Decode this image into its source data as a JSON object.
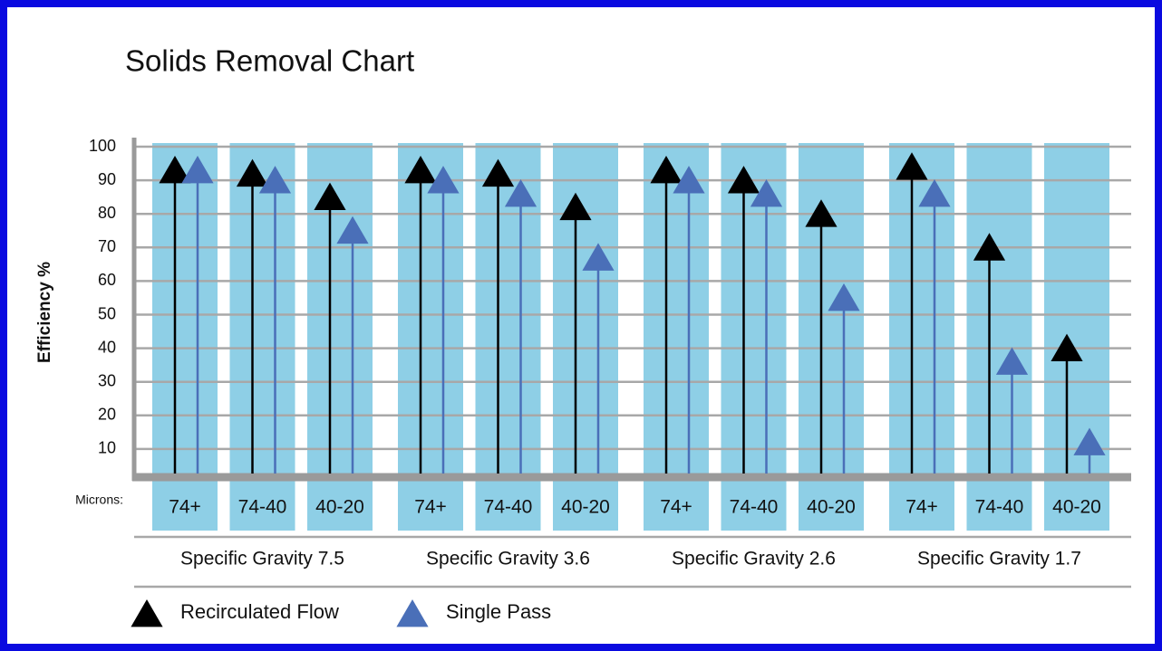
{
  "chart_data": {
    "type": "lollipop",
    "title": "Solids Removal Chart",
    "y_label": "Efficiency %",
    "x_label": "Microns:",
    "groups": [
      "Specific Gravity 7.5",
      "Specific Gravity 3.6",
      "Specific Gravity 2.6",
      "Specific Gravity 1.7"
    ],
    "categories": [
      "74+",
      "74-40",
      "40-20",
      "74+",
      "74-40",
      "40-20",
      "74+",
      "74-40",
      "40-20",
      "74+",
      "74-40",
      "40-20"
    ],
    "series": [
      {
        "name": "Recirculated Flow",
        "color": "#000000",
        "values": [
          93,
          92,
          85,
          93,
          92,
          82,
          93,
          90,
          80,
          94,
          70,
          40
        ]
      },
      {
        "name": "Single Pass",
        "color": "#4a6fb8",
        "values": [
          93,
          90,
          75,
          90,
          86,
          67,
          90,
          86,
          55,
          86,
          36,
          12
        ]
      }
    ],
    "ylim": [
      0,
      100
    ],
    "yticks": [
      10,
      20,
      30,
      40,
      50,
      60,
      70,
      80,
      90,
      100
    ],
    "band_color": "#8ecfe6",
    "grid": true
  }
}
